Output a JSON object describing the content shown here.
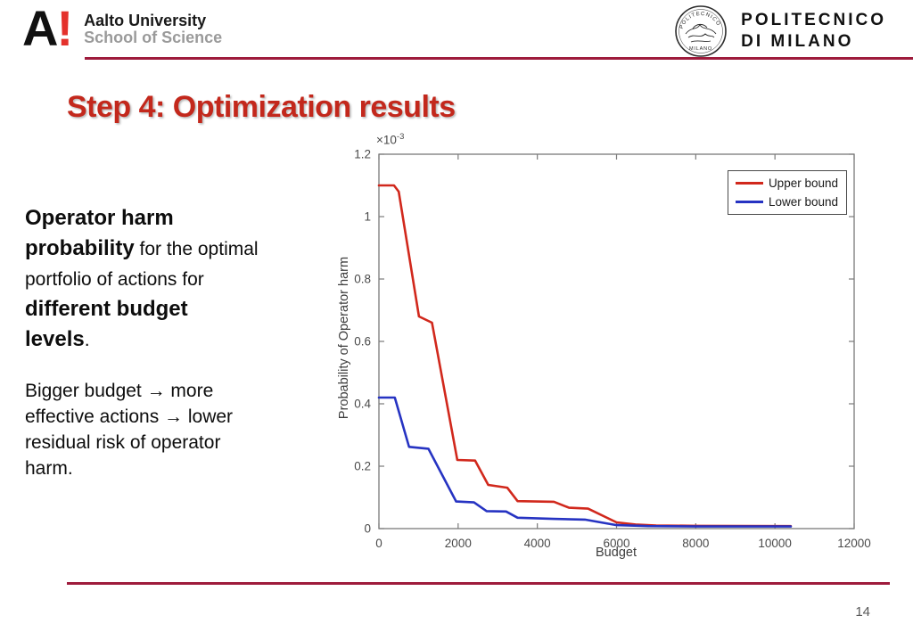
{
  "header": {
    "aalto": {
      "logo_a": "A",
      "logo_bang": "!",
      "name": "Aalto University",
      "school": "School of Science"
    },
    "polimi": {
      "wordmark_line1": "POLITECNICO",
      "wordmark_line2": "DI MILANO",
      "seal_top_text": "POLITECNICO",
      "seal_bottom_text": "MILANO"
    },
    "rule_color": "#9e1b3c"
  },
  "title": {
    "text": "Step 4: Optimization results",
    "color": "#c3281c"
  },
  "text_panel": {
    "para1_lines": [
      {
        "bold": "Operator harm",
        "normal": ""
      },
      {
        "bold": "probability",
        "normal": " for the optimal"
      },
      {
        "bold": "",
        "normal": "portfolio of actions for"
      },
      {
        "bold": "different budget",
        "normal": ""
      },
      {
        "bold": "levels",
        "normal": "."
      }
    ],
    "para2_lines": [
      "Bigger budget → more",
      "effective actions → lower",
      "residual risk of operator",
      "harm."
    ]
  },
  "chart_data": {
    "type": "line",
    "title": "",
    "xlabel": "Budget",
    "ylabel": "Probability of Operator harm",
    "exponent_base": "×10",
    "exponent_power": "-3",
    "y_units": "1e-3",
    "xlim": [
      0,
      12000
    ],
    "ylim": [
      0,
      1.2
    ],
    "x_ticks": [
      0,
      2000,
      4000,
      6000,
      8000,
      10000,
      12000
    ],
    "x_tick_labels": [
      "0",
      "2000",
      "4000",
      "6000",
      "8000",
      "10000",
      "12000"
    ],
    "y_ticks": [
      0,
      0.2,
      0.4,
      0.6,
      0.8,
      1,
      1.2
    ],
    "y_tick_labels": [
      "0",
      "0.2",
      "0.4",
      "0.6",
      "0.8",
      "1",
      "1.2"
    ],
    "grid": false,
    "box": true,
    "axis_color": "#7a7a7a",
    "tick_label_color": "#4a4a4a",
    "legend": {
      "position": "top-right",
      "entries": [
        {
          "label": "Upper bound",
          "color": "#d1281c"
        },
        {
          "label": "Lower bound",
          "color": "#2633c2"
        }
      ]
    },
    "series": [
      {
        "name": "Upper bound",
        "color": "#d1281c",
        "points": [
          [
            0,
            1.1
          ],
          [
            380,
            1.1
          ],
          [
            500,
            1.08
          ],
          [
            1010,
            0.68
          ],
          [
            1340,
            0.66
          ],
          [
            1980,
            0.22
          ],
          [
            2430,
            0.218
          ],
          [
            2760,
            0.14
          ],
          [
            3240,
            0.131
          ],
          [
            3500,
            0.088
          ],
          [
            4420,
            0.086
          ],
          [
            4800,
            0.067
          ],
          [
            5280,
            0.064
          ],
          [
            6000,
            0.02
          ],
          [
            6480,
            0.013
          ],
          [
            7000,
            0.01
          ],
          [
            8000,
            0.009
          ],
          [
            10400,
            0.008
          ]
        ]
      },
      {
        "name": "Lower bound",
        "color": "#2633c2",
        "points": [
          [
            0,
            0.42
          ],
          [
            400,
            0.42
          ],
          [
            760,
            0.262
          ],
          [
            1250,
            0.256
          ],
          [
            1950,
            0.087
          ],
          [
            2400,
            0.084
          ],
          [
            2720,
            0.056
          ],
          [
            3210,
            0.055
          ],
          [
            3500,
            0.035
          ],
          [
            4400,
            0.031
          ],
          [
            5200,
            0.029
          ],
          [
            6000,
            0.011
          ],
          [
            6800,
            0.008
          ],
          [
            8000,
            0.007
          ],
          [
            10400,
            0.007
          ]
        ]
      }
    ]
  },
  "footer": {
    "page_number": "14"
  }
}
